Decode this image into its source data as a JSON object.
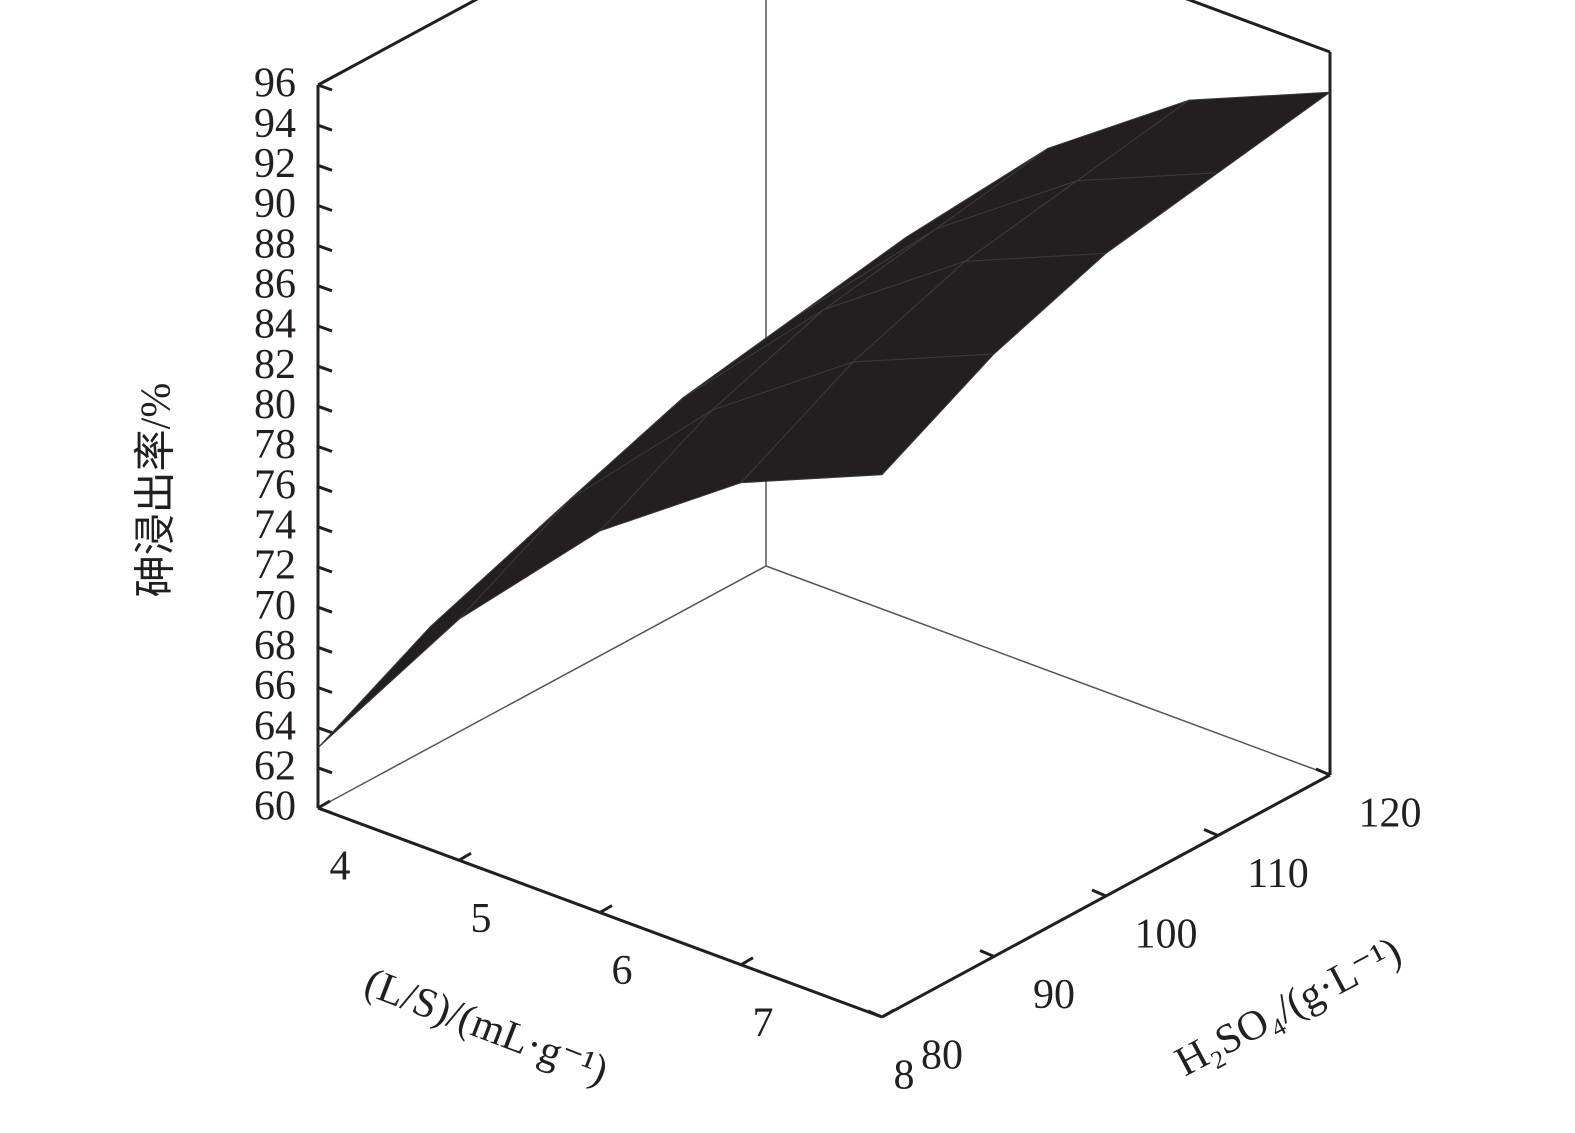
{
  "chart_data": {
    "type": "surface3d",
    "xlabel": "(L/S)/(mL·g⁻¹)",
    "ylabel": "H₂SO₄/(g·L⁻¹)",
    "zlabel": "砷浸出率/%",
    "x": [
      4,
      5,
      6,
      7,
      8
    ],
    "y": [
      80,
      90,
      100,
      110,
      120
    ],
    "z": [
      [
        63,
        66,
        68,
        70,
        71
      ],
      [
        72,
        75,
        77,
        78,
        79
      ],
      [
        79,
        82,
        84,
        85,
        86
      ],
      [
        84,
        87,
        89,
        90,
        91
      ],
      [
        87,
        90,
        92,
        93,
        94
      ]
    ],
    "xlim": [
      4,
      8
    ],
    "ylim": [
      80,
      120
    ],
    "zlim": [
      60,
      96
    ],
    "xticks": [
      4,
      5,
      6,
      7,
      8
    ],
    "yticks": [
      80,
      90,
      100,
      110,
      120
    ],
    "zticks": [
      60,
      62,
      64,
      66,
      68,
      70,
      72,
      74,
      76,
      78,
      80,
      82,
      84,
      86,
      88,
      90,
      92,
      94,
      96
    ],
    "color": "#231f20"
  }
}
